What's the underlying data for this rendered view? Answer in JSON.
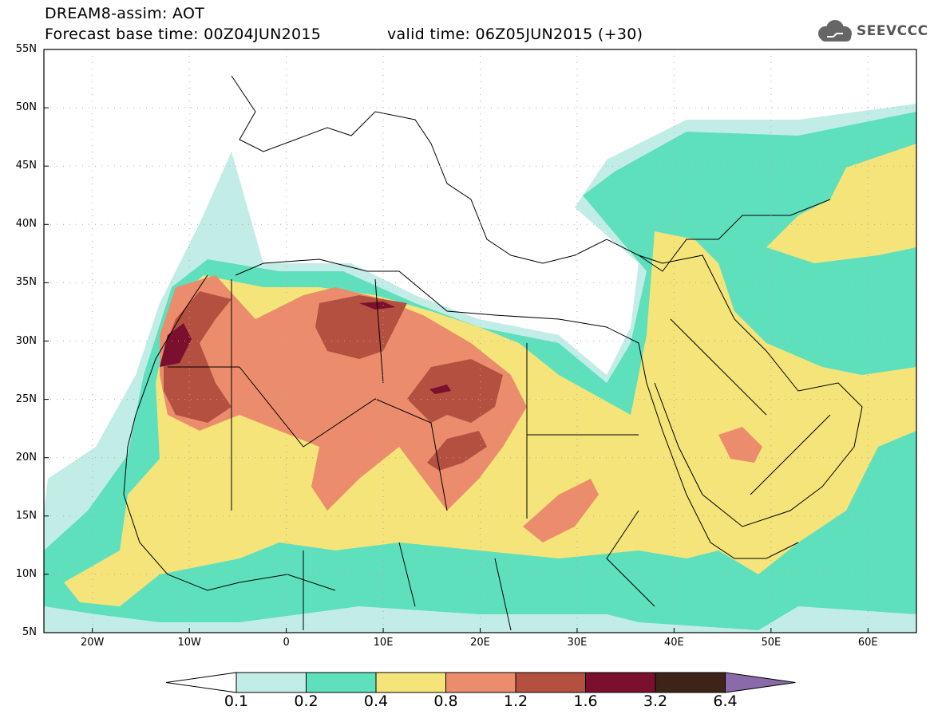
{
  "header": {
    "title_line1": "DREAM8-assim: AOT",
    "title_line2": "Forecast base time: 00Z04JUN2015",
    "valid_time": "valid time: 06Z05JUN2015 (+30)"
  },
  "logo": {
    "text": "SEEVCCC",
    "icon": "cloud-icon"
  },
  "map": {
    "lat_labels": [
      "55N",
      "50N",
      "45N",
      "40N",
      "35N",
      "30N",
      "25N",
      "20N",
      "15N",
      "10N",
      "5N"
    ],
    "lon_labels": [
      "20W",
      "10W",
      "0",
      "10E",
      "20E",
      "30E",
      "40E",
      "50E",
      "60E"
    ],
    "lat_range": [
      5,
      55
    ],
    "lon_range": [
      -25,
      65
    ],
    "grid": "dotted"
  },
  "colorbar": {
    "labels": [
      "0.1",
      "0.2",
      "0.4",
      "0.8",
      "1.2",
      "1.6",
      "3.2",
      "6.4"
    ],
    "colors": [
      "#ffffff",
      "#c2ede6",
      "#5fe0bd",
      "#f5e47a",
      "#eb8d6c",
      "#b4503f",
      "#7a0f2e",
      "#3e2418",
      "#8a6aa8"
    ]
  }
}
